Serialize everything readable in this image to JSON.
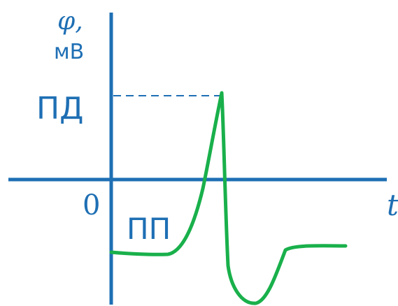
{
  "diagram": {
    "y_axis_symbol": "φ,",
    "y_axis_unit": "мВ",
    "x_axis_symbol": "t",
    "origin_label": "0",
    "peak_label": "ПД",
    "resting_label": "ПП"
  },
  "colors": {
    "axis": "#1e6fb4",
    "text": "#1e6fb4",
    "curve": "#19b04b",
    "guide": "#1e6fb4"
  }
}
